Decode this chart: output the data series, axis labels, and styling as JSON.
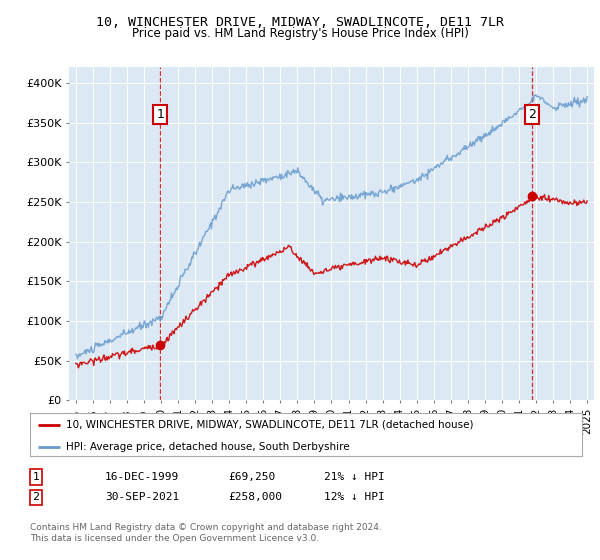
{
  "title": "10, WINCHESTER DRIVE, MIDWAY, SWADLINCOTE, DE11 7LR",
  "subtitle": "Price paid vs. HM Land Registry's House Price Index (HPI)",
  "legend_line1": "10, WINCHESTER DRIVE, MIDWAY, SWADLINCOTE, DE11 7LR (detached house)",
  "legend_line2": "HPI: Average price, detached house, South Derbyshire",
  "annotation1_label": "1",
  "annotation1_date": "16-DEC-1999",
  "annotation1_price": "£69,250",
  "annotation1_hpi": "21% ↓ HPI",
  "annotation2_label": "2",
  "annotation2_date": "30-SEP-2021",
  "annotation2_price": "£258,000",
  "annotation2_hpi": "12% ↓ HPI",
  "footnote": "Contains HM Land Registry data © Crown copyright and database right 2024.\nThis data is licensed under the Open Government Licence v3.0.",
  "red_color": "#cc0000",
  "blue_color": "#6699cc",
  "plot_bg": "#dce9f5",
  "ylim": [
    0,
    420000
  ],
  "yticks": [
    0,
    50000,
    100000,
    150000,
    200000,
    250000,
    300000,
    350000,
    400000
  ],
  "ytick_labels": [
    "£0",
    "£50K",
    "£100K",
    "£150K",
    "£200K",
    "£250K",
    "£300K",
    "£350K",
    "£400K"
  ],
  "sale1_x": 1999.96,
  "sale1_y": 69250,
  "sale2_x": 2021.75,
  "sale2_y": 258000,
  "xmin": 1994.6,
  "xmax": 2025.4
}
